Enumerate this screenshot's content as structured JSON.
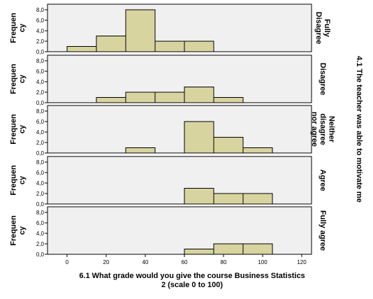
{
  "chart_data": {
    "type": "bar",
    "title": "",
    "xlabel_lines": [
      "6.1 What grade would you give the course Business Statistics",
      "2 (scale 0 to 100)"
    ],
    "ylabel_lines": [
      "Frequen",
      "cy"
    ],
    "row_label": "4.1 The teacher was able to motivate me",
    "xlim": [
      -10,
      125
    ],
    "x_ticks": [
      "0",
      "20",
      "40",
      "60",
      "80",
      "100",
      "120"
    ],
    "x_tick_values": [
      0,
      20,
      40,
      60,
      80,
      100,
      120
    ],
    "ylim": [
      0,
      8
    ],
    "y_ticks": [
      "0,0",
      "2,0",
      "4,0",
      "6,0",
      "8,0"
    ],
    "y_tick_values": [
      0,
      2,
      4,
      6,
      8
    ],
    "bin_width": 15,
    "bar_color": "#d8d4a0",
    "panel_color": "#f0f0f0",
    "panels": [
      {
        "label_lines": [
          "Fully",
          "Disagree"
        ],
        "bins": [
          {
            "start": 0,
            "end": 15,
            "count": 1
          },
          {
            "start": 15,
            "end": 30,
            "count": 3
          },
          {
            "start": 30,
            "end": 45,
            "count": 8
          },
          {
            "start": 45,
            "end": 60,
            "count": 2
          },
          {
            "start": 60,
            "end": 75,
            "count": 2
          }
        ]
      },
      {
        "label_lines": [
          "Disagree"
        ],
        "bins": [
          {
            "start": 15,
            "end": 30,
            "count": 1
          },
          {
            "start": 30,
            "end": 45,
            "count": 2
          },
          {
            "start": 45,
            "end": 60,
            "count": 2
          },
          {
            "start": 60,
            "end": 75,
            "count": 3
          },
          {
            "start": 75,
            "end": 90,
            "count": 1
          }
        ]
      },
      {
        "label_lines": [
          "Neither",
          "disagree",
          "nor agree"
        ],
        "bins": [
          {
            "start": 30,
            "end": 45,
            "count": 1
          },
          {
            "start": 60,
            "end": 75,
            "count": 6
          },
          {
            "start": 75,
            "end": 90,
            "count": 3
          },
          {
            "start": 90,
            "end": 105,
            "count": 1
          }
        ]
      },
      {
        "label_lines": [
          "Agree"
        ],
        "bins": [
          {
            "start": 60,
            "end": 75,
            "count": 3
          },
          {
            "start": 75,
            "end": 90,
            "count": 2
          },
          {
            "start": 90,
            "end": 105,
            "count": 2
          }
        ]
      },
      {
        "label_lines": [
          "Fully agree"
        ],
        "bins": [
          {
            "start": 60,
            "end": 75,
            "count": 1
          },
          {
            "start": 75,
            "end": 90,
            "count": 2
          },
          {
            "start": 90,
            "end": 105,
            "count": 2
          }
        ]
      }
    ]
  }
}
